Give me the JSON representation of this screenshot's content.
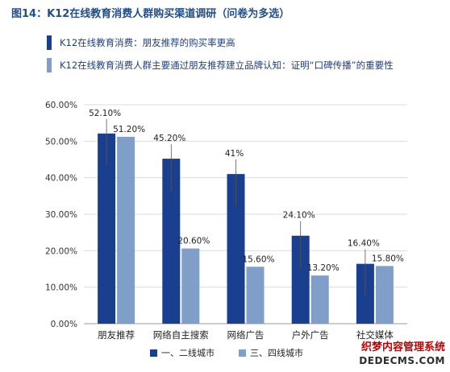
{
  "title": "图14：K12在线教育消费人群购买渠道调研（问卷为多选）",
  "bullets": [
    "K12在线教育消费：朋友推荐的购买率更高",
    "K12在线教育消费人群主要通过朋友推荐建立品牌认知：证明“口碑传播”的重要性"
  ],
  "chart_data": {
    "type": "bar",
    "categories": [
      "朋友推荐",
      "网络自主搜索",
      "网络广告",
      "户外广告",
      "社交媒体"
    ],
    "series": [
      {
        "name": "一、二线城市",
        "values": [
          52.1,
          45.2,
          41,
          24.1,
          16.4
        ],
        "labels": [
          "52.10%",
          "45.20%",
          "41%",
          "24.10%",
          "16.40%"
        ],
        "color": "#1a3f8f"
      },
      {
        "name": "三、四线城市",
        "values": [
          51.2,
          20.6,
          15.6,
          13.2,
          15.8
        ],
        "labels": [
          "51.20%",
          "20.60%",
          "15.60%",
          "13.20%",
          "15.80%"
        ],
        "color": "#7f9ec8"
      }
    ],
    "yticks": [
      "0.00%",
      "10.00%",
      "20.00%",
      "30.00%",
      "40.00%",
      "50.00%",
      "60.00%"
    ],
    "ylim": [
      0,
      60
    ],
    "grid": true,
    "legend_position": "bottom"
  },
  "watermark": {
    "line1": "织梦内容管理系统",
    "line2": "DEDECMS.COM"
  }
}
